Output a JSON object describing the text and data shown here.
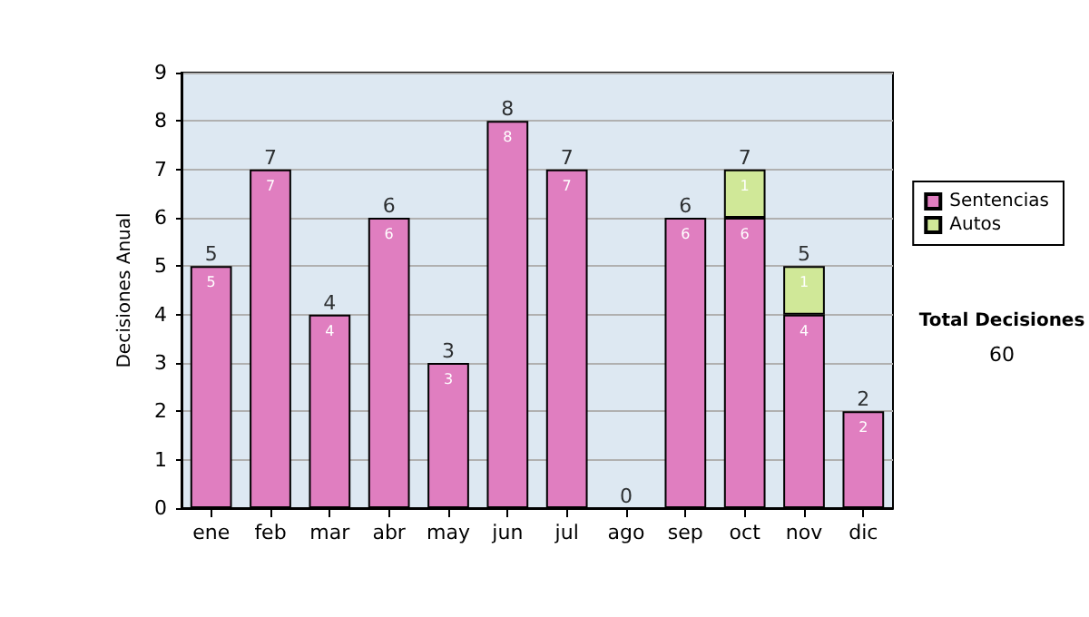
{
  "chart_data": {
    "type": "bar",
    "stacked": true,
    "ylabel": "Decisiones Anual",
    "categories": [
      "ene",
      "feb",
      "mar",
      "abr",
      "may",
      "jun",
      "jul",
      "ago",
      "sep",
      "oct",
      "nov",
      "dic"
    ],
    "series": [
      {
        "name": "Sentencias",
        "color": "#e07ec0",
        "values": [
          5,
          7,
          4,
          6,
          3,
          8,
          7,
          0,
          6,
          6,
          4,
          2
        ],
        "value_labels": [
          "5",
          "7",
          "4",
          "6",
          "3",
          "8",
          "7",
          null,
          "6",
          "6",
          "4",
          "2"
        ]
      },
      {
        "name": "Autos",
        "color": "#d0e898",
        "values": [
          null,
          null,
          null,
          null,
          null,
          null,
          null,
          null,
          null,
          1,
          1,
          null
        ],
        "value_labels": [
          null,
          null,
          null,
          null,
          null,
          null,
          null,
          null,
          null,
          "1",
          "1",
          null
        ]
      }
    ],
    "totals": [
      "5",
      "7",
      "4",
      "6",
      "3",
      "8",
      "7",
      "0",
      "6",
      "7",
      "5",
      "2"
    ],
    "ylim": [
      0,
      9
    ],
    "yticks": [
      0,
      1,
      2,
      3,
      4,
      5,
      6,
      7,
      8,
      9
    ],
    "grid": "y",
    "legend": "right",
    "annotations": [
      "Total Decisiones",
      "60"
    ]
  }
}
